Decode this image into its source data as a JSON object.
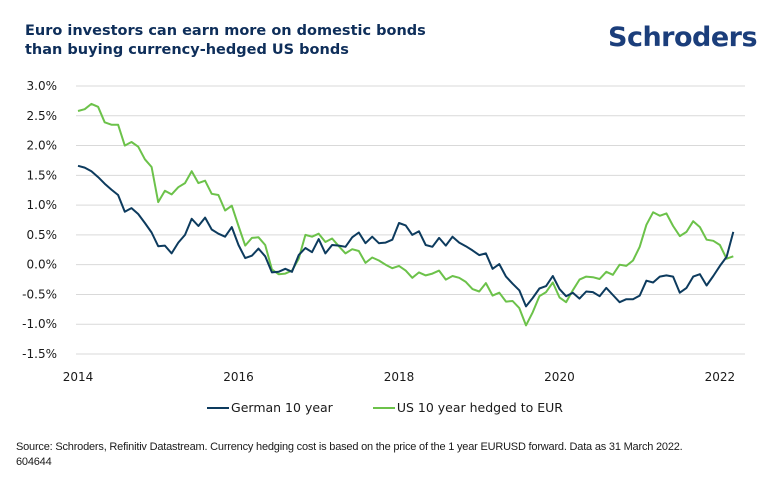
{
  "header": {
    "title": "Euro investors can earn more on domestic bonds than buying currency-hedged US bonds",
    "brand": "Schroders"
  },
  "colors": {
    "title": "#0e2e5a",
    "brand": "#1b3e7b",
    "german": "#0d3b5e",
    "us_hedged": "#6cc24a",
    "grid": "#d9d9d9"
  },
  "footer": {
    "source": "Source: Schroders, Refinitiv Datastream. Currency hedging cost is based on the price of the 1 year EURUSD forward. Data as 31 March 2022.",
    "code": "604644"
  },
  "chart_data": {
    "type": "line",
    "title": "Euro investors can earn more on domestic bonds than buying currency-hedged US bonds",
    "xlabel": "",
    "ylabel": "",
    "x_start": "2014-01",
    "x_frequency": "monthly",
    "x_ticks": [
      "2014",
      "2016",
      "2018",
      "2020",
      "2022"
    ],
    "y_ticks": [
      "3.0%",
      "2.5%",
      "2.0%",
      "1.5%",
      "1.0%",
      "0.5%",
      "0.0%",
      "-0.5%",
      "-1.0%",
      "-1.5%"
    ],
    "y_tick_values": [
      3.0,
      2.5,
      2.0,
      1.5,
      1.0,
      0.5,
      0.0,
      -0.5,
      -1.0,
      -1.5
    ],
    "ylim": [
      -1.5,
      3.0
    ],
    "xlim": [
      2014.0,
      2022.25
    ],
    "grid": true,
    "legend_position": "bottom",
    "series": [
      {
        "name": "German 10 year",
        "values": [
          1.66,
          1.63,
          1.57,
          1.47,
          1.36,
          1.26,
          1.17,
          0.89,
          0.95,
          0.85,
          0.7,
          0.54,
          0.31,
          0.32,
          0.19,
          0.37,
          0.5,
          0.77,
          0.65,
          0.79,
          0.59,
          0.52,
          0.47,
          0.63,
          0.33,
          0.11,
          0.15,
          0.27,
          0.14,
          -0.13,
          -0.12,
          -0.07,
          -0.12,
          0.16,
          0.28,
          0.21,
          0.43,
          0.19,
          0.33,
          0.32,
          0.3,
          0.46,
          0.54,
          0.36,
          0.47,
          0.36,
          0.37,
          0.42,
          0.7,
          0.66,
          0.5,
          0.56,
          0.33,
          0.3,
          0.45,
          0.32,
          0.47,
          0.37,
          0.31,
          0.24,
          0.16,
          0.19,
          -0.07,
          0.01,
          -0.2,
          -0.32,
          -0.43,
          -0.7,
          -0.56,
          -0.4,
          -0.36,
          -0.19,
          -0.41,
          -0.53,
          -0.47,
          -0.57,
          -0.45,
          -0.46,
          -0.53,
          -0.39,
          -0.51,
          -0.63,
          -0.58,
          -0.58,
          -0.52,
          -0.27,
          -0.3,
          -0.2,
          -0.18,
          -0.2,
          -0.47,
          -0.39,
          -0.2,
          -0.16,
          -0.35,
          -0.19,
          -0.02,
          0.13,
          0.55
        ]
      },
      {
        "name": "US 10 year hedged to EUR",
        "values": [
          2.58,
          2.61,
          2.7,
          2.65,
          2.39,
          2.35,
          2.35,
          2.0,
          2.06,
          1.98,
          1.77,
          1.64,
          1.05,
          1.24,
          1.18,
          1.3,
          1.37,
          1.57,
          1.37,
          1.41,
          1.19,
          1.17,
          0.91,
          0.99,
          0.65,
          0.32,
          0.45,
          0.46,
          0.33,
          -0.08,
          -0.16,
          -0.15,
          -0.1,
          0.1,
          0.5,
          0.47,
          0.52,
          0.38,
          0.44,
          0.31,
          0.19,
          0.26,
          0.23,
          0.03,
          0.12,
          0.07,
          0.0,
          -0.06,
          -0.02,
          -0.1,
          -0.22,
          -0.13,
          -0.18,
          -0.15,
          -0.1,
          -0.25,
          -0.19,
          -0.22,
          -0.29,
          -0.41,
          -0.45,
          -0.31,
          -0.52,
          -0.47,
          -0.62,
          -0.61,
          -0.73,
          -1.02,
          -0.8,
          -0.53,
          -0.46,
          -0.3,
          -0.55,
          -0.63,
          -0.43,
          -0.25,
          -0.2,
          -0.21,
          -0.24,
          -0.12,
          -0.17,
          0.0,
          -0.02,
          0.07,
          0.3,
          0.67,
          0.88,
          0.82,
          0.86,
          0.65,
          0.48,
          0.55,
          0.73,
          0.63,
          0.42,
          0.4,
          0.33,
          0.1,
          0.14
        ]
      }
    ]
  }
}
